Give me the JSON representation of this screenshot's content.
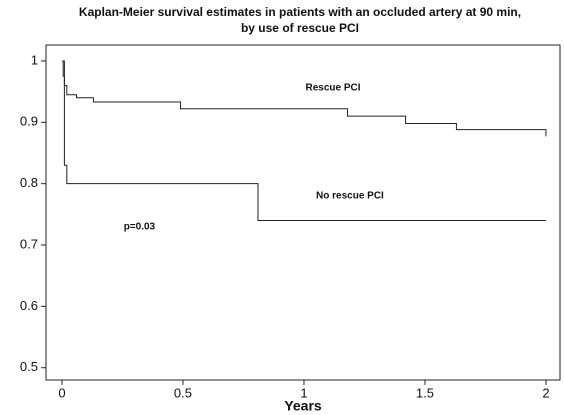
{
  "chart_data": {
    "type": "step",
    "title": [
      "Kaplan-Meier survival estimates in patients with an occluded artery at 90 min,",
      "by use of rescue PCI"
    ],
    "x_label": "Years",
    "series": [
      {
        "name": "Rescue PCI",
        "color": "#222222",
        "x": [
          0,
          0.005,
          0.01,
          0.02,
          0.06,
          0.13,
          0.49,
          1.18,
          1.42,
          1.63,
          2.0
        ],
        "values": [
          1,
          0.975,
          0.96,
          0.945,
          0.94,
          0.933,
          0.922,
          0.91,
          0.898,
          0.888,
          0.877
        ]
      },
      {
        "name": "No rescue PCI",
        "color": "#222222",
        "x": [
          0,
          0.01,
          0.02,
          0.81,
          2.0
        ],
        "values": [
          1,
          0.83,
          0.8,
          0.74,
          0.74
        ]
      }
    ],
    "annotations": [
      {
        "text": "Rescue PCI",
        "x": 1.12,
        "y": 0.956
      },
      {
        "text": "No rescue PCI",
        "x": 1.19,
        "y": 0.78
      },
      {
        "text": "p=0.03",
        "x": 0.32,
        "y": 0.73
      }
    ],
    "xlim": [
      -0.066,
      2.058
    ],
    "ylim": [
      0.48,
      1.026
    ],
    "xticks": [
      0,
      0.5,
      1,
      1.5,
      2
    ],
    "yticks": [
      0.5,
      0.6,
      0.7,
      0.8,
      0.9,
      1
    ],
    "grid": false
  }
}
